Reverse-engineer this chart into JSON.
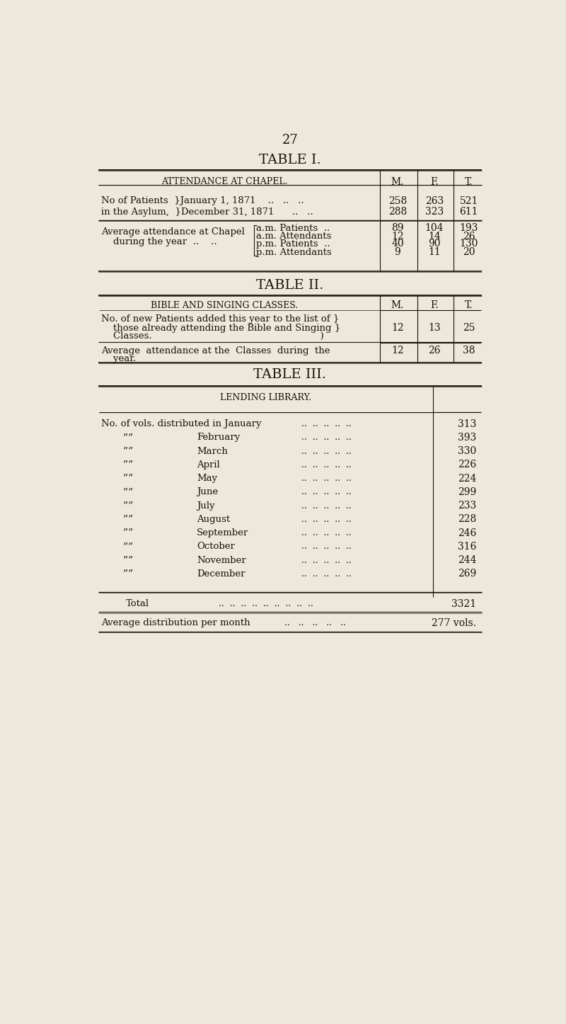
{
  "bg_color": "#ede8dc",
  "text_color": "#1a1208",
  "page_number": "27",
  "table1_title": "TABLE I.",
  "table1_header": "ATTENDANCE AT CHAPEL.",
  "table1_cols": [
    "M.",
    "F.",
    "T."
  ],
  "table1_row1a": "No of Patients  }January 1, 1871    ..   ..   ..",
  "table1_row1b": "in the Asylum,  }December 31, 1871      ..   ..",
  "table1_row1_vals": [
    [
      258,
      263,
      521
    ],
    [
      288,
      323,
      611
    ]
  ],
  "table1_sub_labels": [
    "a.m. Patients  ..",
    "a.m. Attendants",
    "p.m. Patients  ..",
    "p.m. Attendants"
  ],
  "table1_avg_label1": "Average attendance at Chapel",
  "table1_avg_label2": "    during the year  ..    ..",
  "table1_row2_vals": [
    [
      89,
      104,
      193
    ],
    [
      12,
      14,
      26
    ],
    [
      40,
      90,
      130
    ],
    [
      9,
      11,
      20
    ]
  ],
  "table2_title": "TABLE II.",
  "table2_header": "BIBLE AND SINGING CLASSES.",
  "table2_cols": [
    "M.",
    "F.",
    "T."
  ],
  "table2_row1_line1": "No. of new Patients added this year to the list of }",
  "table2_row1_line2": "    those already attending the Bible and Singing }",
  "table2_row1_line3": "    Classes.                                                        )",
  "table2_row1_vals": [
    12,
    13,
    25
  ],
  "table2_row2_line1": "Average  attendance at the  Classes  during  the",
  "table2_row2_line2": "    year.",
  "table2_row2_vals": [
    12,
    26,
    38
  ],
  "table3_title": "TABLE III.",
  "table3_header": "LENDING LIBRARY.",
  "table3_months": [
    "January",
    "February",
    "March",
    "April",
    "May",
    "June",
    "July",
    "August",
    "September",
    "October",
    "November",
    "December"
  ],
  "table3_values": [
    313,
    393,
    330,
    226,
    224,
    299,
    233,
    228,
    246,
    316,
    244,
    269
  ],
  "table3_total": 3321,
  "table3_avg_text": "Average distribution per month",
  "table3_avg_val": "277 vols."
}
